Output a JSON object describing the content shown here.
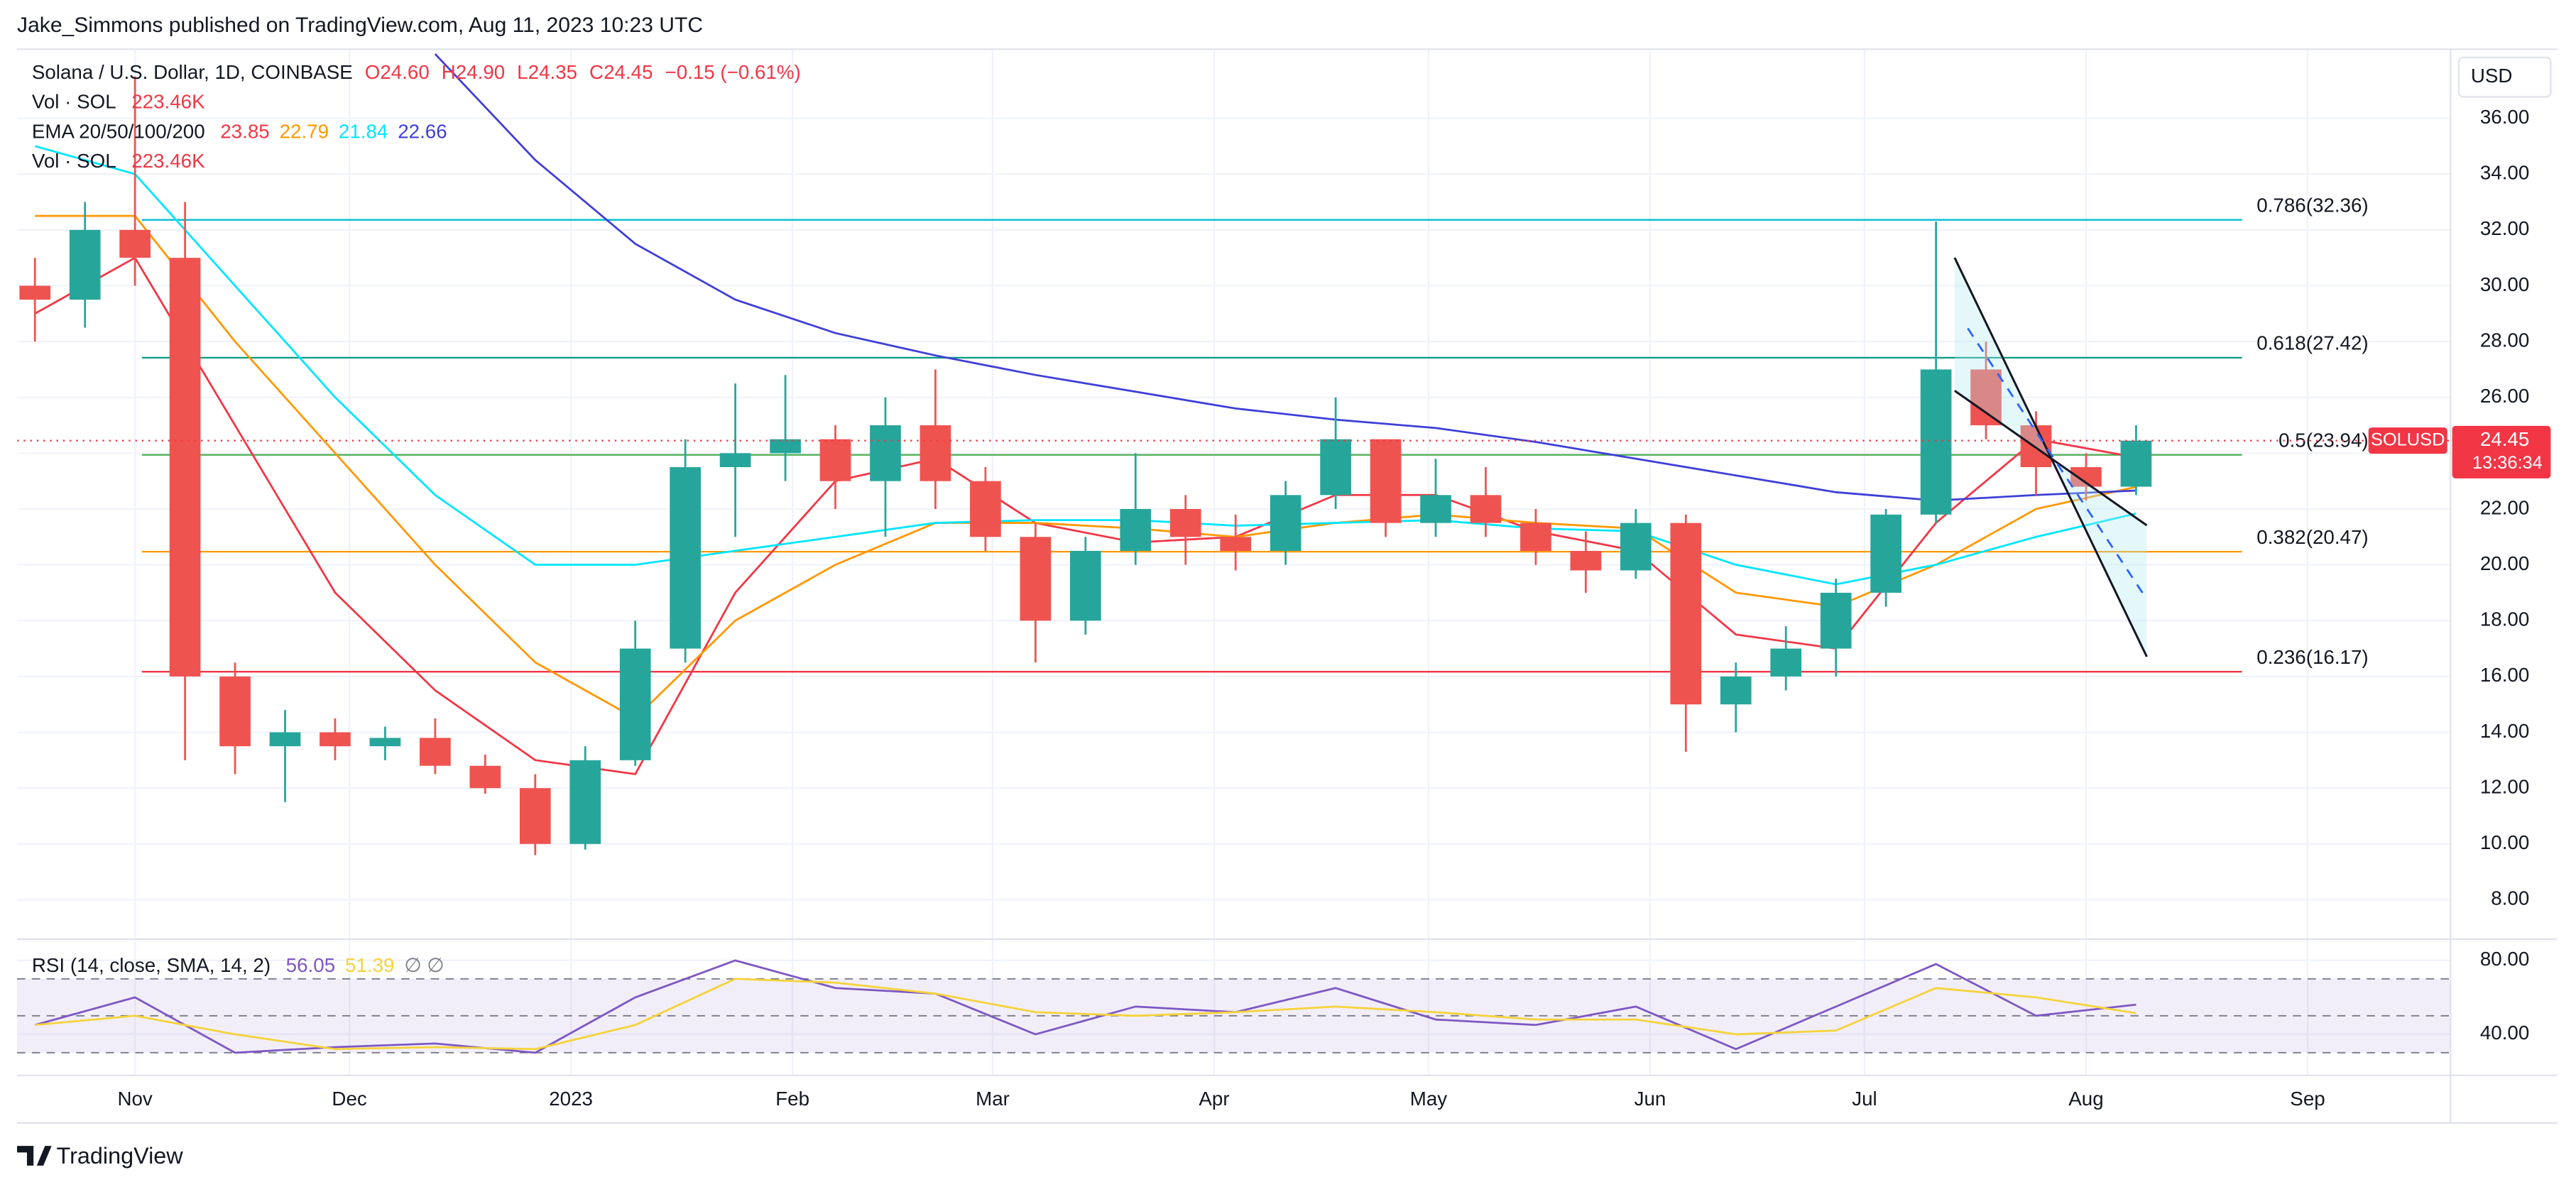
{
  "header": {
    "text": "Jake_Simmons published on TradingView.com, Aug 11, 2023 10:23 UTC"
  },
  "footer": {
    "brand": "TradingView"
  },
  "chart_data": [
    {
      "type": "candlestick",
      "title": "Solana / U.S. Dollar, 1D, COINBASE",
      "ohlc_labels": [
        "O24.60",
        "H24.90",
        "L24.35",
        "C24.45",
        "−0.15 (−0.61%)"
      ],
      "volume_label": "Vol · SOL",
      "volume_value": "223.46K",
      "currency": "USD",
      "up_color": "#26a69a",
      "down_color": "#ef5350",
      "x": [
        -14,
        -7,
        0,
        7,
        14,
        21,
        28,
        35,
        42,
        49,
        56,
        63,
        70,
        77,
        84,
        91,
        98,
        105,
        112,
        119,
        126,
        133,
        140,
        147,
        154,
        161,
        168,
        175,
        182,
        189,
        196,
        203,
        210,
        217,
        224,
        231,
        238,
        245,
        252,
        259,
        266,
        273,
        280
      ],
      "open": [
        30,
        29.5,
        32,
        31,
        16,
        13.5,
        14,
        13.5,
        13.8,
        12.8,
        12,
        10,
        13,
        17,
        23.5,
        24,
        24.5,
        23,
        25,
        23,
        21,
        18,
        20.5,
        22,
        21,
        20.5,
        22.5,
        24.5,
        21.5,
        22.5,
        21.5,
        20.5,
        19.8,
        21.5,
        15,
        16,
        17,
        19,
        21.8,
        27,
        25,
        23.5,
        22.8
      ],
      "high": [
        31,
        33,
        37.5,
        33,
        16.5,
        14.8,
        14.5,
        14.2,
        14.5,
        13.2,
        12.5,
        13.5,
        18,
        24.5,
        26.5,
        26.8,
        25,
        26,
        27,
        23.5,
        21.5,
        21,
        24,
        22.5,
        21.8,
        23,
        26,
        24.5,
        23.8,
        23.5,
        22,
        21.2,
        22,
        21.8,
        16.5,
        17.8,
        19.5,
        22,
        32.3,
        28,
        25.5,
        24,
        25
      ],
      "low": [
        28,
        28.5,
        30,
        13,
        12.5,
        11.5,
        13,
        13,
        12.5,
        11.8,
        9.6,
        9.8,
        12.8,
        16.5,
        21,
        23,
        22,
        21,
        22,
        20.5,
        16.5,
        17.5,
        20,
        20,
        19.8,
        20,
        22,
        21,
        21,
        21,
        20,
        19,
        19.5,
        13.3,
        14,
        15.5,
        16,
        18.5,
        21.5,
        24.5,
        22.5,
        22.3,
        22.5
      ],
      "close": [
        29.5,
        32,
        31,
        16,
        13.5,
        14,
        13.5,
        13.8,
        12.8,
        12,
        10,
        13,
        17,
        23.5,
        24,
        24.5,
        23,
        25,
        23,
        21,
        18,
        20.5,
        22,
        21,
        20.5,
        22.5,
        24.5,
        21.5,
        22.5,
        21.5,
        20.5,
        19.8,
        21.5,
        15,
        16,
        17,
        19,
        21.8,
        27,
        25,
        23.5,
        22.8,
        24.45
      ],
      "xlim": [
        -16.5,
        324
      ],
      "xticks": [
        {
          "value": 0,
          "label": "Nov"
        },
        {
          "value": 30,
          "label": "Dec"
        },
        {
          "value": 61,
          "label": "2023"
        },
        {
          "value": 92,
          "label": "Feb"
        },
        {
          "value": 120,
          "label": "Mar"
        },
        {
          "value": 151,
          "label": "Apr"
        },
        {
          "value": 181,
          "label": "May"
        },
        {
          "value": 212,
          "label": "Jun"
        },
        {
          "value": 242,
          "label": "Jul"
        },
        {
          "value": 273,
          "label": "Aug"
        },
        {
          "value": 304,
          "label": "Sep"
        }
      ],
      "ylim": [
        6.65,
        38.59
      ],
      "yticks": [
        {
          "value": 8,
          "label": "8.00"
        },
        {
          "value": 10,
          "label": "10.00"
        },
        {
          "value": 12,
          "label": "12.00"
        },
        {
          "value": 14,
          "label": "14.00"
        },
        {
          "value": 16,
          "label": "16.00"
        },
        {
          "value": 18,
          "label": "18.00"
        },
        {
          "value": 20,
          "label": "20.00"
        },
        {
          "value": 22,
          "label": "22.00"
        },
        {
          "value": 24,
          "label": "24.00"
        },
        {
          "value": 26,
          "label": "26.00"
        },
        {
          "value": 28,
          "label": "28.00"
        },
        {
          "value": 30,
          "label": "30.00"
        },
        {
          "value": 32,
          "label": "32.00"
        },
        {
          "value": 34,
          "label": "34.00"
        },
        {
          "value": 36,
          "label": "36.00"
        }
      ],
      "grid": true,
      "ema": {
        "label": "EMA 20/50/100/200",
        "x": [
          -14,
          0,
          14,
          28,
          42,
          56,
          70,
          84,
          98,
          112,
          126,
          140,
          154,
          168,
          182,
          196,
          210,
          224,
          238,
          252,
          266,
          280
        ],
        "series": [
          {
            "color": "#f23645",
            "value_label": "23.85",
            "values": [
              29,
              31,
              25,
              19,
              15.5,
              13,
              12.5,
              19,
              23,
              23.8,
              21.5,
              20.8,
              21,
              22.5,
              22.5,
              21.2,
              20.5,
              17.5,
              17,
              21.5,
              24.5,
              23.85
            ]
          },
          {
            "color": "#ff9800",
            "value_label": "22.79",
            "values": [
              32.5,
              32.5,
              28,
              24,
              20,
              16.5,
              14.5,
              18,
              20,
              21.5,
              21.5,
              21.3,
              21,
              21.5,
              21.8,
              21.5,
              21.3,
              19,
              18.5,
              20,
              22,
              22.79
            ]
          },
          {
            "color": "#00e5ff",
            "value_label": "21.84",
            "values": [
              35,
              34,
              30,
              26,
              22.5,
              20,
              20,
              20.5,
              21,
              21.5,
              21.6,
              21.6,
              21.4,
              21.5,
              21.6,
              21.3,
              21.2,
              20,
              19.3,
              20,
              21,
              21.84
            ]
          },
          {
            "color": "#3f3fd8",
            "value_label": "22.66",
            "values": [
              null,
              null,
              null,
              null,
              38.3,
              34.5,
              31.5,
              29.5,
              28.3,
              27.5,
              26.8,
              26.2,
              25.6,
              25.2,
              24.9,
              24.4,
              23.8,
              23.2,
              22.6,
              22.3,
              22.5,
              22.66
            ]
          }
        ]
      },
      "fib_levels": [
        {
          "value": 32.36,
          "label": "0.786(32.36)",
          "color": "#00bcd4"
        },
        {
          "value": 27.42,
          "label": "0.618(27.42)",
          "color": "#089981"
        },
        {
          "value": 23.94,
          "label": "0.5(23.94)",
          "color": "#4caf50"
        },
        {
          "value": 20.47,
          "label": "0.382(20.47)",
          "color": "#ff9800"
        },
        {
          "value": 16.17,
          "label": "0.236(16.17)",
          "color": "#f23645"
        }
      ],
      "last_price": 24.45,
      "symbol": "SOLUSD",
      "countdown": "13:36:34",
      "last_color": "#f23645"
    },
    {
      "type": "line",
      "title": "RSI (14, close, SMA, 14, 2)",
      "extra_label": "∅ ∅",
      "x": [
        -14,
        0,
        14,
        28,
        42,
        56,
        70,
        84,
        98,
        112,
        126,
        140,
        154,
        168,
        182,
        196,
        210,
        224,
        238,
        252,
        266,
        280
      ],
      "series": [
        {
          "color": "#7e57c2",
          "value_label": "56.05",
          "values": [
            45,
            60,
            30,
            33,
            35,
            30,
            60,
            80,
            65,
            62,
            40,
            55,
            52,
            65,
            48,
            45,
            55,
            32,
            55,
            78,
            50,
            56.05
          ]
        },
        {
          "color": "#f5d33a",
          "value_label": "51.39",
          "values": [
            45,
            50,
            40,
            32,
            33,
            32,
            45,
            70,
            68,
            62,
            52,
            50,
            52,
            55,
            52,
            48,
            48,
            40,
            42,
            65,
            60,
            51.39
          ]
        }
      ],
      "ylim": [
        20.4,
        86.2
      ],
      "yticks": [
        {
          "value": 80,
          "label": "80.00"
        },
        {
          "value": 40,
          "label": "40.00"
        }
      ],
      "bands": [
        70,
        50,
        30
      ]
    }
  ]
}
